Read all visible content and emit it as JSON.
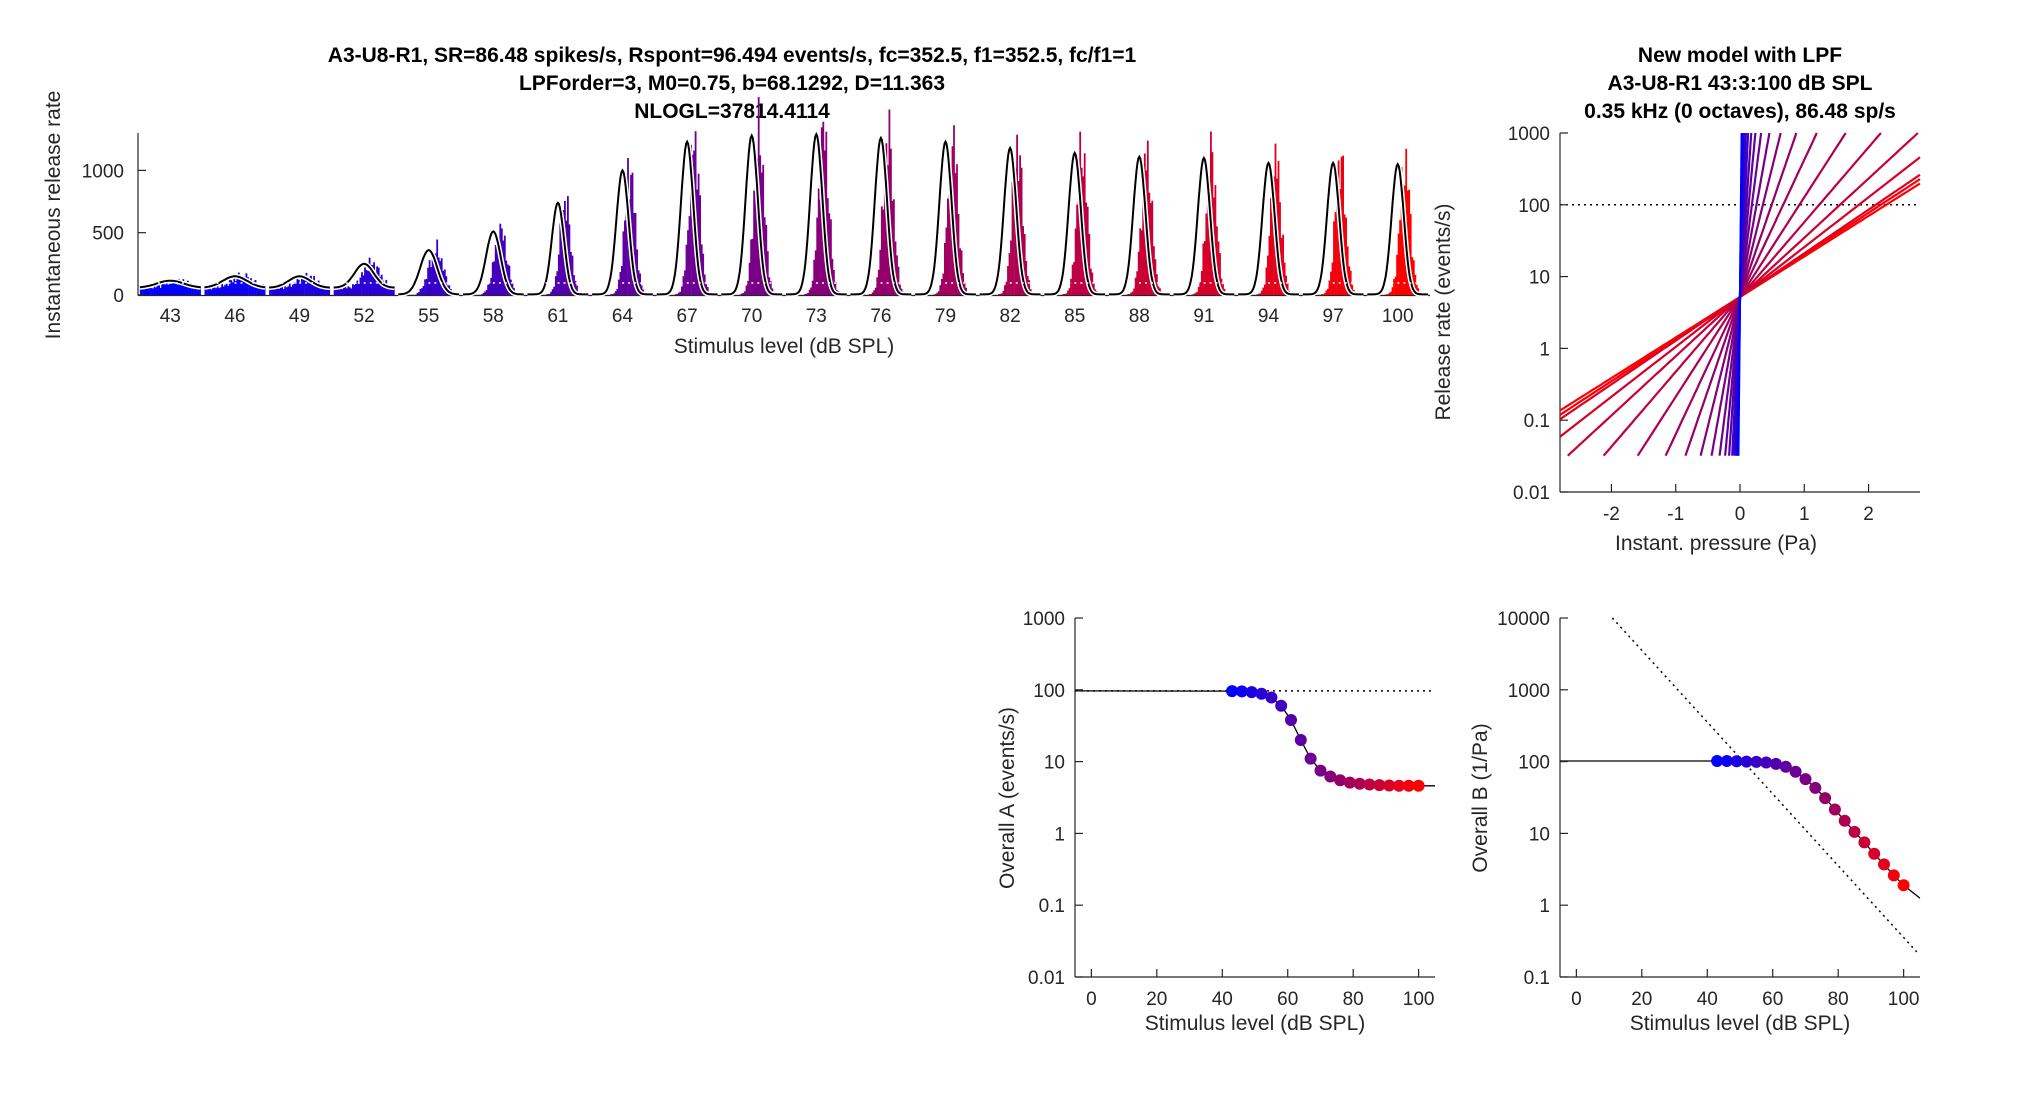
{
  "chart_data": [
    {
      "type": "bar",
      "title_lines": [
        "A3-U8-R1, SR=86.48 spikes/s, Rspont=96.494 events/s, fc=352.5, f1=352.5, fc/f1=1",
        "LPForder=3, M0=0.75, b=68.1292, D=11.363",
        "NLOGL=37814.4114"
      ],
      "xlabel": "Stimulus level (dB SPL)",
      "ylabel": "Instantaneous release rate",
      "categories": [
        "43",
        "46",
        "49",
        "52",
        "55",
        "58",
        "61",
        "64",
        "67",
        "70",
        "73",
        "76",
        "79",
        "82",
        "85",
        "88",
        "91",
        "94",
        "97",
        "100"
      ],
      "peak_rates": [
        115,
        150,
        150,
        250,
        360,
        510,
        740,
        1000,
        1230,
        1280,
        1290,
        1260,
        1230,
        1180,
        1140,
        1110,
        1100,
        1060,
        1060,
        1050
      ],
      "baseline_rate": 96.5,
      "ylim": [
        0,
        1300
      ],
      "yticks": [
        "0",
        "500",
        "1000"
      ]
    },
    {
      "type": "line",
      "title_lines": [
        "New model with LPF",
        "A3-U8-R1    43:3:100 dB SPL",
        "0.35 kHz (0 octaves), 86.48 sp/s"
      ],
      "xlabel": "Instant. pressure (Pa)",
      "ylabel": "Release rate (events/s)",
      "xlim": [
        -2.8,
        2.8
      ],
      "ylim": [
        0.01,
        1000
      ],
      "yscale": "log",
      "xticks": [
        "-2",
        "-1",
        "0",
        "1",
        "2"
      ],
      "yticks": [
        "0.01",
        "0.1",
        "1",
        "10",
        "100",
        "1000"
      ],
      "reference_line": 100,
      "curve_slopes": [
        1.3,
        1.35,
        1.4,
        1.6,
        1.9,
        2.4,
        3.2,
        4.4,
        6.0,
        8.3,
        11.5,
        16,
        22,
        30,
        42,
        58,
        80,
        110,
        150,
        200
      ]
    },
    {
      "type": "scatter",
      "xlabel": "Stimulus level (dB SPL)",
      "ylabel": "Overall A (events/s)",
      "xlim": [
        -5,
        105
      ],
      "ylim": [
        0.01,
        1000
      ],
      "yscale": "log",
      "xticks": [
        "0",
        "20",
        "40",
        "60",
        "80",
        "100"
      ],
      "yticks": [
        "0.01",
        "0.1",
        "1",
        "10",
        "100",
        "1000"
      ],
      "reference_line": 96.5,
      "x": [
        43,
        46,
        49,
        52,
        55,
        58,
        61,
        64,
        67,
        70,
        73,
        76,
        79,
        82,
        85,
        88,
        91,
        94,
        97,
        100
      ],
      "y": [
        96,
        95,
        93,
        88,
        78,
        60,
        38,
        20,
        11,
        7.5,
        6.2,
        5.5,
        5.1,
        4.9,
        4.8,
        4.7,
        4.65,
        4.6,
        4.6,
        4.6
      ]
    },
    {
      "type": "scatter",
      "xlabel": "Stimulus level (dB SPL)",
      "ylabel": "Overall B (1/Pa)",
      "xlim": [
        -5,
        105
      ],
      "ylim": [
        0.1,
        10000
      ],
      "yscale": "log",
      "xticks": [
        "0",
        "20",
        "40",
        "60",
        "80",
        "100"
      ],
      "yticks": [
        "0.1",
        "1",
        "10",
        "100",
        "1000",
        "10000"
      ],
      "reference_line": 100,
      "x": [
        43,
        46,
        49,
        52,
        55,
        58,
        61,
        64,
        67,
        70,
        73,
        76,
        79,
        82,
        85,
        88,
        91,
        94,
        97,
        100
      ],
      "y": [
        102,
        102,
        101,
        100,
        99,
        97,
        93,
        85,
        72,
        57,
        43,
        31,
        21.5,
        15,
        10.5,
        7.5,
        5.2,
        3.7,
        2.6,
        1.9
      ]
    }
  ]
}
